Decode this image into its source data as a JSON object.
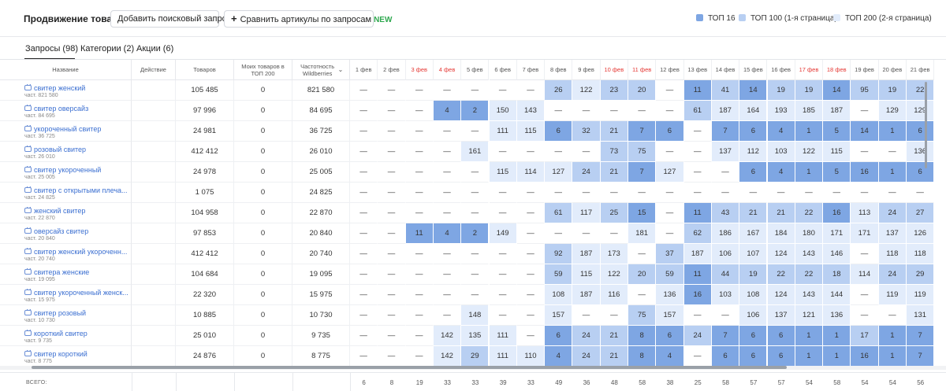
{
  "toolbar": {
    "title": "Продвижение товара",
    "add_query_label": "Добавить поисковый запрос",
    "compare_label": "Сравнить артикулы по запросам",
    "compare_plus": "+",
    "new_badge": "NEW"
  },
  "legend": [
    {
      "label": "ТОП 16",
      "color": "#7ea6e3"
    },
    {
      "label": "ТОП 100 (1-я страница)",
      "color": "#b8cff2"
    },
    {
      "label": "ТОП 200 (2-я страница)",
      "color": "#e2ecfb"
    }
  ],
  "tabs": [
    {
      "label": "Запросы (98)",
      "active": true
    },
    {
      "label": "Категории (2)",
      "active": false
    },
    {
      "label": "Акции (6)",
      "active": false
    }
  ],
  "columns": {
    "name": "Название",
    "action": "Действие",
    "goods": "Товаров",
    "my_goods": "Моих товаров в ТОП 200",
    "frequency": "Частотность Wildberries",
    "sort_icon": "chevron-down"
  },
  "days": [
    {
      "label": "1 фев",
      "weekend": false
    },
    {
      "label": "2 фев",
      "weekend": false
    },
    {
      "label": "3 фев",
      "weekend": true
    },
    {
      "label": "4 фев",
      "weekend": true
    },
    {
      "label": "5 фев",
      "weekend": false
    },
    {
      "label": "6 фев",
      "weekend": false
    },
    {
      "label": "7 фев",
      "weekend": false
    },
    {
      "label": "8 фев",
      "weekend": false
    },
    {
      "label": "9 фев",
      "weekend": false
    },
    {
      "label": "10 фев",
      "weekend": true
    },
    {
      "label": "11 фев",
      "weekend": true
    },
    {
      "label": "12 фев",
      "weekend": false
    },
    {
      "label": "13 фев",
      "weekend": false
    },
    {
      "label": "14 фев",
      "weekend": false
    },
    {
      "label": "15 фев",
      "weekend": false
    },
    {
      "label": "16 фев",
      "weekend": false
    },
    {
      "label": "17 фев",
      "weekend": true
    },
    {
      "label": "18 фев",
      "weekend": true
    },
    {
      "label": "19 фев",
      "weekend": false
    },
    {
      "label": "20 фев",
      "weekend": false
    },
    {
      "label": "21 фев",
      "weekend": false
    }
  ],
  "rows": [
    {
      "name": "свитер женский",
      "freq_label": "част. 821 580",
      "goods": "105 485",
      "my": "0",
      "frequency": "821 580",
      "days": [
        "—",
        "—",
        "—",
        "—",
        "—",
        "—",
        "—",
        "26",
        "122",
        "23",
        "20",
        "—",
        "11",
        "41",
        "14",
        "19",
        "19",
        "14",
        "95",
        "19",
        "22"
      ]
    },
    {
      "name": "свитер оверсайз",
      "freq_label": "част. 84 695",
      "goods": "97 996",
      "my": "0",
      "frequency": "84 695",
      "days": [
        "—",
        "—",
        "—",
        "4",
        "2",
        "150",
        "143",
        "—",
        "—",
        "—",
        "—",
        "—",
        "61",
        "187",
        "164",
        "193",
        "185",
        "187",
        "—",
        "129",
        "129"
      ]
    },
    {
      "name": "укороченный свитер",
      "freq_label": "част. 36 725",
      "goods": "24 981",
      "my": "0",
      "frequency": "36 725",
      "days": [
        "—",
        "—",
        "—",
        "—",
        "—",
        "111",
        "115",
        "6",
        "32",
        "21",
        "7",
        "6",
        "—",
        "7",
        "6",
        "4",
        "1",
        "5",
        "14",
        "1",
        "6"
      ]
    },
    {
      "name": "розовый свитер",
      "freq_label": "част. 26 010",
      "goods": "412 412",
      "my": "0",
      "frequency": "26 010",
      "days": [
        "—",
        "—",
        "—",
        "—",
        "161",
        "—",
        "—",
        "—",
        "—",
        "73",
        "75",
        "—",
        "—",
        "137",
        "112",
        "103",
        "122",
        "115",
        "—",
        "—",
        "136"
      ]
    },
    {
      "name": "свитер укороченный",
      "freq_label": "част. 25 005",
      "goods": "24 978",
      "my": "0",
      "frequency": "25 005",
      "days": [
        "—",
        "—",
        "—",
        "—",
        "—",
        "115",
        "114",
        "127",
        "24",
        "21",
        "7",
        "127",
        "—",
        "—",
        "6",
        "4",
        "1",
        "5",
        "16",
        "1",
        "6"
      ]
    },
    {
      "name": "свитер с открытыми плеча...",
      "freq_label": "част. 24 825",
      "goods": "1 075",
      "my": "0",
      "frequency": "24 825",
      "days": [
        "—",
        "—",
        "—",
        "—",
        "—",
        "—",
        "—",
        "—",
        "—",
        "—",
        "—",
        "—",
        "—",
        "—",
        "—",
        "—",
        "—",
        "—",
        "—",
        "—",
        "—"
      ]
    },
    {
      "name": "женский свитер",
      "freq_label": "част. 22 870",
      "goods": "104 958",
      "my": "0",
      "frequency": "22 870",
      "days": [
        "—",
        "—",
        "—",
        "—",
        "—",
        "—",
        "—",
        "61",
        "117",
        "25",
        "15",
        "—",
        "11",
        "43",
        "21",
        "21",
        "22",
        "16",
        "113",
        "24",
        "27"
      ]
    },
    {
      "name": "оверсайз свитер",
      "freq_label": "част. 20 840",
      "goods": "97 853",
      "my": "0",
      "frequency": "20 840",
      "days": [
        "—",
        "—",
        "11",
        "4",
        "2",
        "149",
        "—",
        "—",
        "—",
        "—",
        "181",
        "—",
        "62",
        "186",
        "167",
        "184",
        "180",
        "171",
        "171",
        "137",
        "126"
      ]
    },
    {
      "name": "свитер женский укороченн...",
      "freq_label": "част. 20 740",
      "goods": "412 412",
      "my": "0",
      "frequency": "20 740",
      "days": [
        "—",
        "—",
        "—",
        "—",
        "—",
        "—",
        "—",
        "92",
        "187",
        "173",
        "—",
        "37",
        "187",
        "106",
        "107",
        "124",
        "143",
        "146",
        "—",
        "118",
        "118"
      ]
    },
    {
      "name": "свитера женские",
      "freq_label": "част. 19 095",
      "goods": "104 684",
      "my": "0",
      "frequency": "19 095",
      "days": [
        "—",
        "—",
        "—",
        "—",
        "—",
        "—",
        "—",
        "59",
        "115",
        "122",
        "20",
        "59",
        "11",
        "44",
        "19",
        "22",
        "22",
        "18",
        "114",
        "24",
        "29"
      ]
    },
    {
      "name": "свитер укороченный женск...",
      "freq_label": "част. 15 975",
      "goods": "22 320",
      "my": "0",
      "frequency": "15 975",
      "days": [
        "—",
        "—",
        "—",
        "—",
        "—",
        "—",
        "—",
        "108",
        "187",
        "116",
        "—",
        "136",
        "16",
        "103",
        "108",
        "124",
        "143",
        "144",
        "—",
        "119",
        "119"
      ]
    },
    {
      "name": "свитер розовый",
      "freq_label": "част. 10 730",
      "goods": "10 885",
      "my": "0",
      "frequency": "10 730",
      "days": [
        "—",
        "—",
        "—",
        "—",
        "148",
        "—",
        "—",
        "157",
        "—",
        "—",
        "75",
        "157",
        "—",
        "—",
        "106",
        "137",
        "121",
        "136",
        "—",
        "—",
        "131"
      ]
    },
    {
      "name": "короткий свитер",
      "freq_label": "част. 9 735",
      "goods": "25 010",
      "my": "0",
      "frequency": "9 735",
      "days": [
        "—",
        "—",
        "—",
        "142",
        "135",
        "111",
        "—",
        "6",
        "24",
        "21",
        "8",
        "6",
        "24",
        "7",
        "6",
        "6",
        "1",
        "1",
        "17",
        "1",
        "7"
      ]
    },
    {
      "name": "свитер короткий",
      "freq_label": "част. 8 775",
      "goods": "24 876",
      "my": "0",
      "frequency": "8 775",
      "days": [
        "—",
        "—",
        "—",
        "142",
        "29",
        "111",
        "110",
        "4",
        "24",
        "21",
        "8",
        "4",
        "—",
        "6",
        "6",
        "6",
        "1",
        "1",
        "16",
        "1",
        "7"
      ]
    }
  ],
  "totals": {
    "label": "ВСЕГО:",
    "values": [
      "6",
      "8",
      "19",
      "33",
      "33",
      "39",
      "33",
      "49",
      "36",
      "48",
      "58",
      "38",
      "25",
      "58",
      "57",
      "57",
      "54",
      "58",
      "54",
      "54",
      "56"
    ]
  },
  "colors": {
    "top16": "#7ea6e3",
    "top100": "#b8cff2",
    "top200": "#e2ecfb",
    "link": "#3b6fd1",
    "weekend": "#e53935"
  }
}
